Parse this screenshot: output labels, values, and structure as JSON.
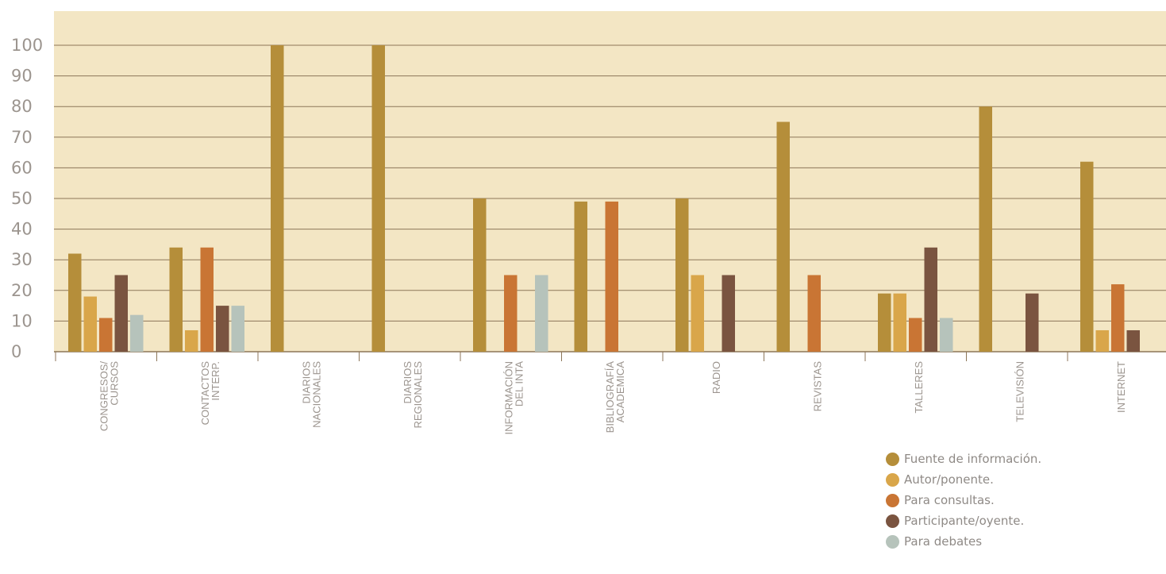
{
  "chart_data": {
    "type": "bar",
    "title": "",
    "xlabel": "",
    "ylabel": "",
    "ylim": [
      0,
      100
    ],
    "yticks": [
      0,
      10,
      20,
      30,
      40,
      50,
      60,
      70,
      80,
      90,
      100
    ],
    "grid": true,
    "legend_position": "bottom-right",
    "categories": [
      [
        "CONGRESOS/",
        "CURSOS"
      ],
      [
        "CONTACTOS",
        "INTERP."
      ],
      [
        "DIARIOS",
        "NACIONALES"
      ],
      [
        "DIARIOS",
        "REGIONALES"
      ],
      [
        "INFORMACIÓN",
        "DEL INTA"
      ],
      [
        "BIBLIOGRAFÍA",
        "ACADEMICA"
      ],
      [
        "RADIO"
      ],
      [
        "REVISTAS"
      ],
      [
        "TALLERES"
      ],
      [
        "TELEVISIÓN"
      ],
      [
        "INTERNET"
      ]
    ],
    "series": [
      {
        "name": "Fuente de información.",
        "color": "#b58e3a",
        "values": [
          32,
          34,
          100,
          100,
          50,
          49,
          50,
          75,
          19,
          80,
          62
        ]
      },
      {
        "name": "Autor/ponente.",
        "color": "#d9a64a",
        "values": [
          18,
          7,
          0,
          0,
          0,
          0,
          25,
          0,
          19,
          0,
          7
        ]
      },
      {
        "name": "Para consultas.",
        "color": "#c97534",
        "values": [
          11,
          34,
          0,
          0,
          25,
          49,
          0,
          25,
          11,
          0,
          22
        ]
      },
      {
        "name": "Participante/oyente.",
        "color": "#7a5440",
        "values": [
          25,
          15,
          0,
          0,
          0,
          0,
          25,
          0,
          34,
          19,
          7
        ]
      },
      {
        "name": "Para debates",
        "color": "#b6c3bb",
        "values": [
          12,
          15,
          0,
          0,
          25,
          0,
          0,
          0,
          11,
          0,
          0
        ]
      }
    ]
  },
  "style": {
    "plot_background": "#f3e6c4",
    "gridline_color": "#8c7658",
    "axis_text_color": "#9c958f"
  }
}
